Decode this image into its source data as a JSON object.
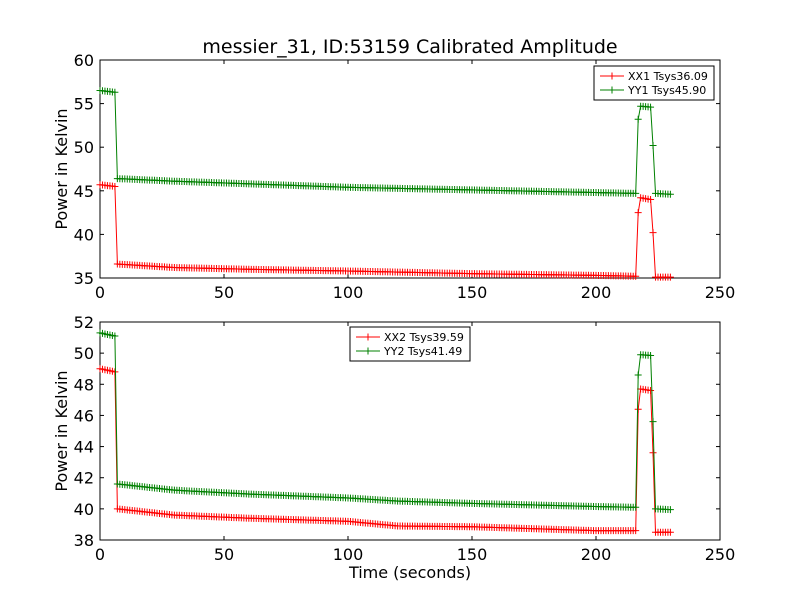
{
  "figure": {
    "title": "messier_31, ID:53159 Calibrated Amplitude"
  },
  "chart_data": [
    {
      "type": "line",
      "xlabel": "",
      "ylabel": "Power in Kelvin",
      "xlim": [
        0,
        250
      ],
      "ylim": [
        35,
        60
      ],
      "xticks": [
        0,
        50,
        100,
        150,
        200,
        250
      ],
      "yticks": [
        35,
        40,
        45,
        50,
        55,
        60
      ],
      "legend_position": "top-right",
      "marker": "+",
      "series": [
        {
          "name": "XX1 Tsys36.09",
          "color": "#ff0000",
          "segments": [
            [
              0,
              45.7
            ],
            [
              6,
              45.5
            ],
            [
              7,
              36.6
            ],
            [
              30,
              36.2
            ],
            [
              60,
              36.0
            ],
            [
              100,
              35.8
            ],
            [
              150,
              35.5
            ],
            [
              200,
              35.3
            ],
            [
              216,
              35.2
            ],
            [
              217,
              42.5
            ],
            [
              218,
              44.2
            ],
            [
              222,
              44.0
            ],
            [
              223,
              40.2
            ],
            [
              224,
              35.1
            ],
            [
              230,
              35.1
            ]
          ]
        },
        {
          "name": "YY1 Tsys45.90",
          "color": "#008000",
          "segments": [
            [
              0,
              56.5
            ],
            [
              6,
              56.3
            ],
            [
              7,
              46.4
            ],
            [
              30,
              46.1
            ],
            [
              60,
              45.8
            ],
            [
              100,
              45.4
            ],
            [
              150,
              45.1
            ],
            [
              200,
              44.8
            ],
            [
              216,
              44.7
            ],
            [
              217,
              53.2
            ],
            [
              218,
              54.7
            ],
            [
              222,
              54.6
            ],
            [
              223,
              50.2
            ],
            [
              224,
              44.7
            ],
            [
              230,
              44.6
            ]
          ]
        }
      ]
    },
    {
      "type": "line",
      "xlabel": "Time (seconds)",
      "ylabel": "Power in Kelvin",
      "xlim": [
        0,
        250
      ],
      "ylim": [
        38,
        52
      ],
      "xticks": [
        0,
        50,
        100,
        150,
        200,
        250
      ],
      "yticks": [
        38,
        40,
        42,
        44,
        46,
        48,
        50,
        52
      ],
      "legend_position": "top-center",
      "marker": "+",
      "series": [
        {
          "name": "XX2 Tsys39.59",
          "color": "#ff0000",
          "segments": [
            [
              0,
              49.0
            ],
            [
              6,
              48.8
            ],
            [
              7,
              40.0
            ],
            [
              30,
              39.6
            ],
            [
              60,
              39.4
            ],
            [
              100,
              39.2
            ],
            [
              120,
              38.9
            ],
            [
              150,
              38.85
            ],
            [
              200,
              38.6
            ],
            [
              216,
              38.6
            ],
            [
              217,
              46.4
            ],
            [
              218,
              47.7
            ],
            [
              222,
              47.6
            ],
            [
              223,
              43.6
            ],
            [
              224,
              38.5
            ],
            [
              230,
              38.5
            ]
          ]
        },
        {
          "name": "YY2 Tsys41.49",
          "color": "#008000",
          "segments": [
            [
              0,
              51.3
            ],
            [
              6,
              51.1
            ],
            [
              7,
              41.6
            ],
            [
              30,
              41.2
            ],
            [
              60,
              40.95
            ],
            [
              100,
              40.7
            ],
            [
              120,
              40.5
            ],
            [
              150,
              40.35
            ],
            [
              200,
              40.15
            ],
            [
              216,
              40.1
            ],
            [
              217,
              48.6
            ],
            [
              218,
              49.9
            ],
            [
              222,
              49.85
            ],
            [
              223,
              45.6
            ],
            [
              224,
              40.0
            ],
            [
              230,
              39.95
            ]
          ]
        }
      ]
    }
  ]
}
